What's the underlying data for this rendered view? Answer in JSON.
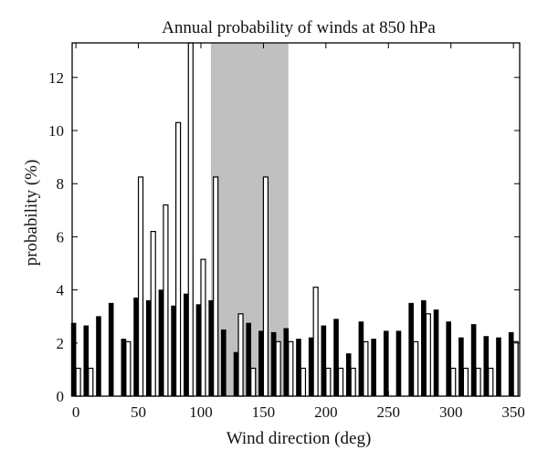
{
  "chart_data": {
    "type": "bar",
    "title": "Annual probability of winds at 850 hPa",
    "xlabel": "Wind direction (deg)",
    "ylabel": "probability (%)",
    "xlim": [
      -3,
      355
    ],
    "ylim": [
      0,
      13.3
    ],
    "xticks": [
      0,
      50,
      100,
      150,
      200,
      250,
      300,
      350
    ],
    "yticks": [
      0,
      2,
      4,
      6,
      8,
      10,
      12
    ],
    "grid": false,
    "legend": "none",
    "shaded_band": {
      "from": 108,
      "to": 170,
      "color": "#c0c0c0"
    },
    "series": [
      {
        "style": "filled",
        "color": "#000000",
        "x": [
          0,
          10,
          20,
          30,
          40,
          50,
          60,
          70,
          80,
          90,
          100,
          110,
          120,
          130,
          140,
          150,
          160,
          170,
          180,
          190,
          200,
          210,
          220,
          230,
          240,
          250,
          260,
          270,
          280,
          290,
          300,
          310,
          320,
          330,
          340,
          350
        ],
        "values": [
          2.75,
          2.65,
          3.0,
          3.5,
          2.15,
          3.7,
          3.6,
          4.0,
          3.4,
          3.85,
          3.45,
          3.6,
          2.5,
          1.65,
          2.75,
          2.45,
          2.4,
          2.55,
          2.15,
          2.2,
          2.65,
          2.9,
          1.6,
          2.8,
          2.15,
          2.45,
          2.45,
          3.5,
          3.6,
          3.25,
          2.8,
          2.2,
          2.7,
          2.25,
          2.2,
          2.4
        ]
      },
      {
        "style": "open",
        "color": "#000000",
        "x": [
          0,
          10,
          40,
          50,
          60,
          70,
          80,
          90,
          100,
          110,
          130,
          140,
          150,
          160,
          170,
          180,
          190,
          200,
          210,
          220,
          230,
          270,
          280,
          300,
          310,
          320,
          330,
          350
        ],
        "values": [
          1.05,
          1.05,
          2.05,
          8.25,
          6.2,
          7.2,
          10.3,
          13.3,
          5.15,
          8.25,
          3.1,
          1.05,
          8.25,
          2.05,
          2.05,
          1.05,
          4.1,
          1.05,
          1.05,
          1.05,
          2.05,
          2.05,
          3.1,
          1.05,
          1.05,
          1.05,
          1.05,
          2.05
        ]
      }
    ]
  }
}
